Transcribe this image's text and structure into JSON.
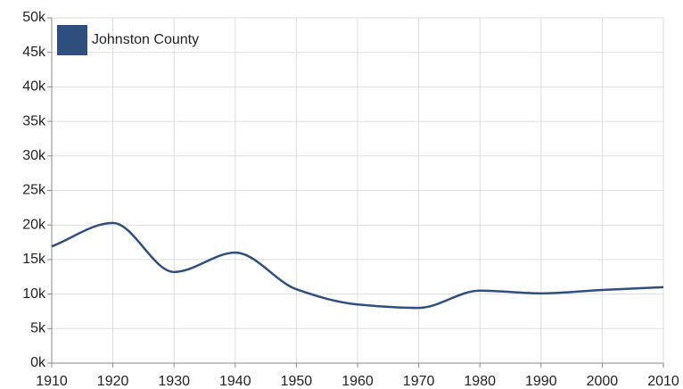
{
  "chart_data": {
    "type": "line",
    "x": [
      1910,
      1920,
      1930,
      1940,
      1950,
      1960,
      1970,
      1980,
      1990,
      2000,
      2010
    ],
    "series": [
      {
        "name": "Johnston County",
        "color": "#2f4f7f",
        "values": [
          16900,
          20300,
          13200,
          16000,
          10700,
          8500,
          8000,
          10500,
          10100,
          10600,
          11000
        ]
      }
    ],
    "xlim": [
      1910,
      2010
    ],
    "xticks": [
      1910,
      1920,
      1930,
      1940,
      1950,
      1960,
      1970,
      1980,
      1990,
      2000,
      2010
    ],
    "ylim": [
      0,
      50000
    ],
    "yticks": [
      {
        "value": 0,
        "label": "0k"
      },
      {
        "value": 5000,
        "label": "5k"
      },
      {
        "value": 10000,
        "label": "10k"
      },
      {
        "value": 15000,
        "label": "15k"
      },
      {
        "value": 20000,
        "label": "20k"
      },
      {
        "value": 25000,
        "label": "25k"
      },
      {
        "value": 30000,
        "label": "30k"
      },
      {
        "value": 35000,
        "label": "35k"
      },
      {
        "value": 40000,
        "label": "40k"
      },
      {
        "value": 45000,
        "label": "45k"
      },
      {
        "value": 50000,
        "label": "50k"
      }
    ],
    "grid": true,
    "legend": "top-left"
  }
}
